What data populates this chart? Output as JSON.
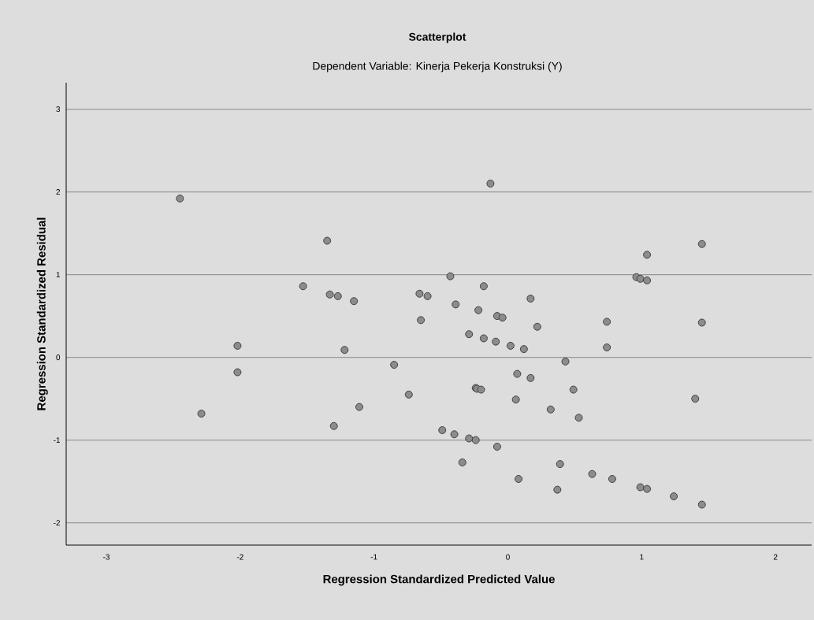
{
  "chart_data": {
    "type": "scatter",
    "title": "Scatterplot",
    "subtitle": "Dependent Variable: Kinerja Pekerja Konstruksi (Y)",
    "xlabel": "Regression Standardized Predicted Value",
    "ylabel": "Regression Standardized Residual",
    "x": [
      -2.45,
      -1.35,
      -0.13,
      -1.53,
      -1.33,
      -1.27,
      -1.15,
      -0.66,
      -0.6,
      -0.43,
      -0.39,
      -0.18,
      -0.22,
      0.17,
      0.96,
      0.99,
      1.04,
      1.04,
      1.45,
      -0.08,
      -0.04,
      0.74,
      1.45,
      0.22,
      -0.29,
      -0.18,
      -0.09,
      0.02,
      0.12,
      0.74,
      0.43,
      0.07,
      0.17,
      -0.24,
      -0.23,
      -0.2,
      0.49,
      0.06,
      1.4,
      0.32,
      0.53,
      -0.49,
      -0.4,
      -0.29,
      -0.24,
      -0.08,
      -0.34,
      0.39,
      0.63,
      0.08,
      0.78,
      0.37,
      0.99,
      1.04,
      1.24,
      1.45,
      -0.65,
      -2.02,
      -1.22,
      -2.02,
      -0.85,
      -0.74,
      -1.11,
      -2.29,
      -1.3
    ],
    "values": [
      1.92,
      1.41,
      2.1,
      0.86,
      0.76,
      0.74,
      0.68,
      0.77,
      0.74,
      0.98,
      0.64,
      0.86,
      0.57,
      0.71,
      0.97,
      0.95,
      0.93,
      1.24,
      1.37,
      0.5,
      0.48,
      0.43,
      0.42,
      0.37,
      0.28,
      0.23,
      0.19,
      0.14,
      0.1,
      0.12,
      -0.05,
      -0.2,
      -0.25,
      -0.37,
      -0.38,
      -0.39,
      -0.39,
      -0.51,
      -0.5,
      -0.63,
      -0.73,
      -0.88,
      -0.93,
      -0.98,
      -1.0,
      -1.08,
      -1.27,
      -1.29,
      -1.41,
      -1.47,
      -1.47,
      -1.6,
      -1.57,
      -1.59,
      -1.68,
      -1.78,
      0.45,
      0.14,
      0.09,
      -0.18,
      -0.09,
      -0.45,
      -0.6,
      -0.68,
      -0.83
    ],
    "color": "#8c8c8c",
    "marker": "circle",
    "grid": "y",
    "xlim": [
      -3.3,
      2.27
    ],
    "ylim": [
      -2.27,
      3.32
    ],
    "xticks": [
      -3,
      -2,
      -1,
      0,
      1,
      2
    ],
    "yticks": [
      -2,
      -1,
      0,
      1,
      2,
      3
    ]
  }
}
